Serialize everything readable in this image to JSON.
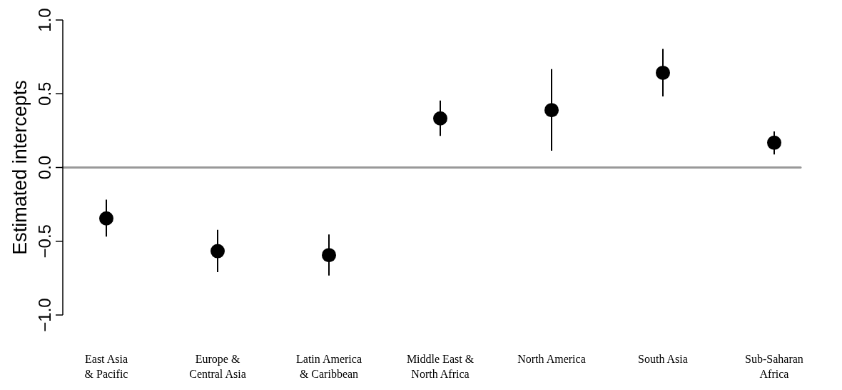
{
  "chart_data": {
    "type": "scatter",
    "ylabel": "Estimated intercepts",
    "categories": [
      "East Asia\n& Pacific",
      "Europe &\nCentral Asia",
      "Latin America\n& Caribbean",
      "Middle East &\nNorth Africa",
      "North America",
      "South Asia",
      "Sub-Saharan\nAfrica"
    ],
    "series": [
      {
        "color": "#000000",
        "values": [
          -0.345,
          -0.567,
          -0.594,
          0.333,
          0.389,
          0.642,
          0.168
        ],
        "errors": [
          [
            -0.468,
            -0.218
          ],
          [
            -0.71,
            -0.423
          ],
          [
            -0.732,
            -0.454
          ],
          [
            0.214,
            0.454
          ],
          [
            0.114,
            0.667
          ],
          [
            0.482,
            0.804
          ],
          [
            0.088,
            0.244
          ]
        ]
      }
    ],
    "ylim": [
      -1.0,
      1.0
    ],
    "yticks": [
      {
        "value": -1,
        "label": "−1.0"
      },
      {
        "value": -0.5,
        "label": "−0.5"
      },
      {
        "value": 0,
        "label": "0.0"
      },
      {
        "value": 0.5,
        "label": "0.5"
      },
      {
        "value": 1,
        "label": "1.0"
      }
    ],
    "ref_lines": [
      {
        "axis": "y",
        "value": 0,
        "color": "#999999"
      }
    ],
    "marker": "circle"
  }
}
